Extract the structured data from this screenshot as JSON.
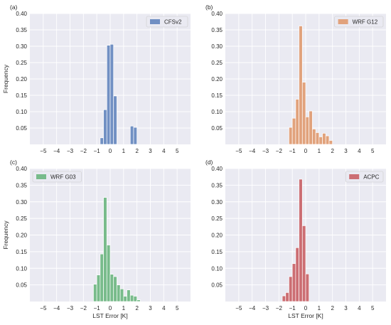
{
  "chart_data": [
    {
      "type": "bar",
      "panel_label": "(a)",
      "series": [
        {
          "name": "CFSv2",
          "color": "#7190c3",
          "bins": [
            {
              "x0": -0.75,
              "x1": -0.5,
              "y": 0.02
            },
            {
              "x0": -0.5,
              "x1": -0.25,
              "y": 0.106
            },
            {
              "x0": -0.25,
              "x1": 0.0,
              "y": 0.303
            },
            {
              "x0": 0.0,
              "x1": 0.25,
              "y": 0.306
            },
            {
              "x0": 0.25,
              "x1": 0.5,
              "y": 0.148
            },
            {
              "x0": 1.5,
              "x1": 1.75,
              "y": 0.056
            },
            {
              "x0": 1.75,
              "x1": 2.0,
              "y": 0.052
            }
          ]
        }
      ],
      "legend_position": "top-right",
      "ylabel": "Frequency",
      "xlabel": "",
      "xlim": [
        -6,
        6
      ],
      "ylim": [
        0,
        0.4
      ],
      "xticks": [
        "−5",
        "−4",
        "−3",
        "−2",
        "−1",
        "0",
        "1",
        "2",
        "3",
        "4",
        "5"
      ],
      "yticks": [
        "0.05",
        "0.10",
        "0.15",
        "0.20",
        "0.25",
        "0.30",
        "0.35",
        "0.40"
      ],
      "grid": true
    },
    {
      "type": "bar",
      "panel_label": "(b)",
      "series": [
        {
          "name": "WRF G12",
          "color": "#e1a27c",
          "bins": [
            {
              "x0": -1.25,
              "x1": -1.0,
              "y": 0.052
            },
            {
              "x0": -1.0,
              "x1": -0.75,
              "y": 0.08
            },
            {
              "x0": -0.75,
              "x1": -0.5,
              "y": 0.138
            },
            {
              "x0": -0.5,
              "x1": -0.25,
              "y": 0.362
            },
            {
              "x0": -0.25,
              "x1": 0.0,
              "y": 0.19
            },
            {
              "x0": 0.0,
              "x1": 0.25,
              "y": 0.084
            },
            {
              "x0": 0.25,
              "x1": 0.5,
              "y": 0.102
            },
            {
              "x0": 0.5,
              "x1": 0.75,
              "y": 0.047
            },
            {
              "x0": 0.75,
              "x1": 1.0,
              "y": 0.036
            },
            {
              "x0": 1.0,
              "x1": 1.25,
              "y": 0.023
            },
            {
              "x0": 1.25,
              "x1": 1.5,
              "y": 0.034
            },
            {
              "x0": 1.5,
              "x1": 1.75,
              "y": 0.026
            },
            {
              "x0": 1.75,
              "x1": 2.0,
              "y": 0.012
            }
          ]
        }
      ],
      "legend_position": "top-right",
      "ylabel": "",
      "xlabel": "",
      "xlim": [
        -6,
        6
      ],
      "ylim": [
        0,
        0.4
      ],
      "xticks": [
        "−5",
        "−4",
        "−3",
        "−2",
        "−1",
        "0",
        "1",
        "2",
        "3",
        "4",
        "5"
      ],
      "yticks": [
        "0.05",
        "0.10",
        "0.15",
        "0.20",
        "0.25",
        "0.30",
        "0.35",
        "0.40"
      ],
      "grid": true
    },
    {
      "type": "bar",
      "panel_label": "(c)",
      "series": [
        {
          "name": "WRF G03",
          "color": "#78bb8b",
          "bins": [
            {
              "x0": -1.25,
              "x1": -1.0,
              "y": 0.052
            },
            {
              "x0": -1.0,
              "x1": -0.75,
              "y": 0.08
            },
            {
              "x0": -0.75,
              "x1": -0.5,
              "y": 0.143
            },
            {
              "x0": -0.5,
              "x1": -0.25,
              "y": 0.313
            },
            {
              "x0": -0.25,
              "x1": 0.0,
              "y": 0.17
            },
            {
              "x0": 0.0,
              "x1": 0.25,
              "y": 0.082
            },
            {
              "x0": 0.25,
              "x1": 0.5,
              "y": 0.075
            },
            {
              "x0": 0.5,
              "x1": 0.75,
              "y": 0.05
            },
            {
              "x0": 0.75,
              "x1": 1.0,
              "y": 0.038
            },
            {
              "x0": 1.0,
              "x1": 1.25,
              "y": 0.016
            },
            {
              "x0": 1.25,
              "x1": 1.5,
              "y": 0.035
            },
            {
              "x0": 1.5,
              "x1": 1.75,
              "y": 0.019
            },
            {
              "x0": 1.75,
              "x1": 2.0,
              "y": 0.016
            },
            {
              "x0": 2.0,
              "x1": 2.25,
              "y": 0.005
            }
          ]
        }
      ],
      "legend_position": "top-left",
      "ylabel": "Frequency",
      "xlabel": "LST Error [K]",
      "xlim": [
        -6,
        6
      ],
      "ylim": [
        0,
        0.4
      ],
      "xticks": [
        "−5",
        "−4",
        "−3",
        "−2",
        "−1",
        "0",
        "1",
        "2",
        "3",
        "4",
        "5"
      ],
      "yticks": [
        "0.05",
        "0.10",
        "0.15",
        "0.20",
        "0.25",
        "0.30",
        "0.35",
        "0.40"
      ],
      "grid": true
    },
    {
      "type": "bar",
      "panel_label": "(d)",
      "series": [
        {
          "name": "ACPC",
          "color": "#cc6e73",
          "bins": [
            {
              "x0": -1.75,
              "x1": -1.5,
              "y": 0.017
            },
            {
              "x0": -1.5,
              "x1": -1.25,
              "y": 0.027
            },
            {
              "x0": -1.25,
              "x1": -1.0,
              "y": 0.075
            },
            {
              "x0": -1.0,
              "x1": -0.75,
              "y": 0.114
            },
            {
              "x0": -0.75,
              "x1": -0.5,
              "y": 0.162
            },
            {
              "x0": -0.5,
              "x1": -0.25,
              "y": 0.368
            },
            {
              "x0": -0.25,
              "x1": 0.0,
              "y": 0.228
            },
            {
              "x0": 0.0,
              "x1": 0.25,
              "y": 0.083
            }
          ]
        }
      ],
      "legend_position": "top-right",
      "ylabel": "",
      "xlabel": "LST Error [K]",
      "xlim": [
        -6,
        6
      ],
      "ylim": [
        0,
        0.4
      ],
      "xticks": [
        "−5",
        "−4",
        "−3",
        "−2",
        "−1",
        "0",
        "1",
        "2",
        "3",
        "4",
        "5"
      ],
      "yticks": [
        "0.05",
        "0.10",
        "0.15",
        "0.20",
        "0.25",
        "0.30",
        "0.35",
        "0.40"
      ],
      "grid": true
    }
  ],
  "colors": {
    "plot_background": "#eaeaf2",
    "grid": "#ffffff",
    "text": "#262626"
  }
}
